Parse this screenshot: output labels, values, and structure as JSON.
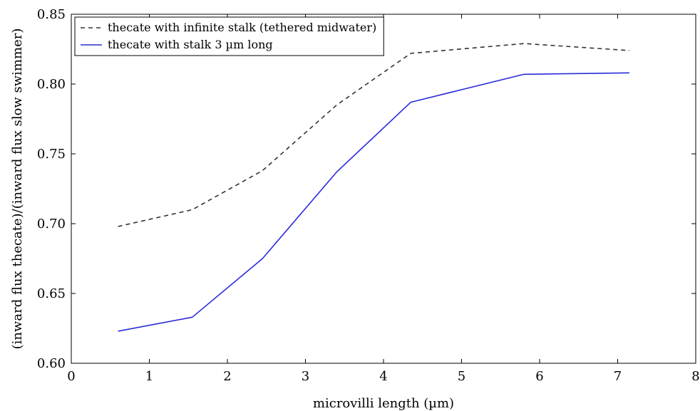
{
  "chart_data": {
    "type": "line",
    "title": "",
    "xlabel": "microvilli length (µm)",
    "ylabel": "(inward flux thecate)/(inward flux slow swimmer)",
    "xlim": [
      0,
      8
    ],
    "ylim": [
      0.6,
      0.85
    ],
    "xticks": [
      0,
      1,
      2,
      3,
      4,
      5,
      6,
      7,
      8
    ],
    "yticks": [
      0.6,
      0.65,
      0.7,
      0.75,
      0.8,
      0.85
    ],
    "xtick_labels": [
      "0",
      "1",
      "2",
      "3",
      "4",
      "5",
      "6",
      "7",
      "8"
    ],
    "ytick_labels": [
      "0.60",
      "0.65",
      "0.70",
      "0.75",
      "0.80",
      "0.85"
    ],
    "grid": false,
    "legend_position": "top-left",
    "series": [
      {
        "name": "thecate with infinite stalk (tethered midwater)",
        "color": "#333333",
        "style": "dashed",
        "x": [
          0.6,
          1.55,
          2.45,
          3.4,
          4.35,
          5.8,
          7.15
        ],
        "y": [
          0.698,
          0.71,
          0.738,
          0.785,
          0.822,
          0.829,
          0.824
        ]
      },
      {
        "name": "thecate with stalk 3 µm long",
        "color": "#2b2bd9",
        "style": "solid",
        "x": [
          0.6,
          1.55,
          2.45,
          3.4,
          4.35,
          5.8,
          7.15
        ],
        "y": [
          0.623,
          0.633,
          0.675,
          0.737,
          0.787,
          0.807,
          0.808
        ]
      }
    ]
  }
}
